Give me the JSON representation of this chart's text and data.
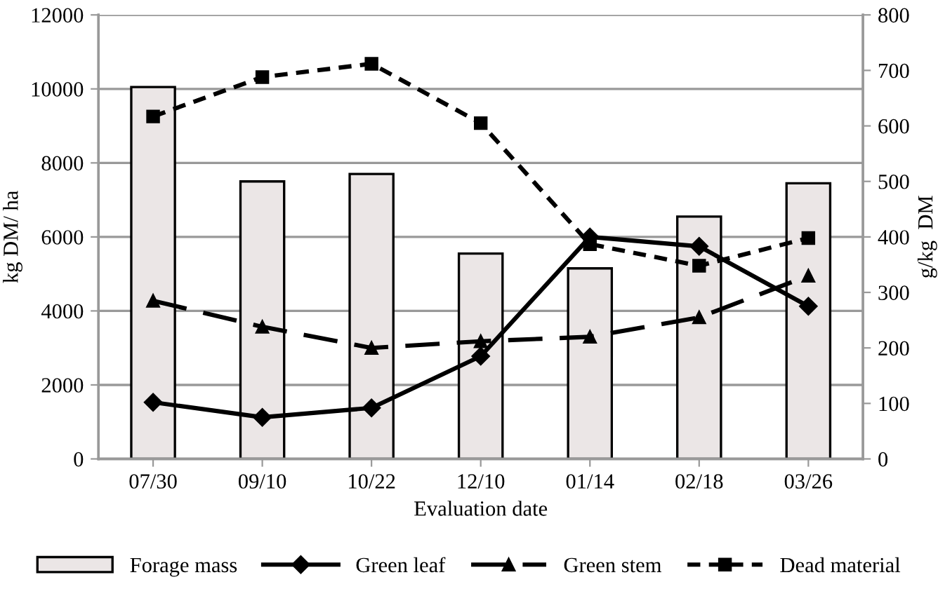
{
  "chart_data": {
    "type": "bar",
    "xlabel": "Evaluation date",
    "ylabel": "kg DM/ ha",
    "y2label": "g/kg  DM",
    "categories": [
      "07/30",
      "09/10",
      "10/22",
      "12/10",
      "01/14",
      "02/18",
      "03/26"
    ],
    "ylim": [
      0,
      12000
    ],
    "yticks": [
      0,
      2000,
      4000,
      6000,
      8000,
      10000,
      12000
    ],
    "y2lim": [
      0,
      800
    ],
    "y2ticks": [
      0,
      100,
      200,
      300,
      400,
      500,
      600,
      700,
      800
    ],
    "grid": "y",
    "legend": "bottom",
    "series": [
      {
        "name": "Forage mass",
        "color": "#ebe6e6",
        "values": [
          10050,
          7500,
          7700,
          5550,
          5150,
          6550,
          7450
        ]
      },
      {
        "name": "Green leaf",
        "type": "line",
        "axis": "y2",
        "color": "#000000",
        "marker": "diamond",
        "line_style": "solid",
        "values": [
          102,
          75,
          92,
          185,
          400,
          383,
          275
        ]
      },
      {
        "name": "Green stem",
        "type": "line",
        "axis": "y2",
        "color": "#000000",
        "marker": "triangle",
        "line_style": "dashed",
        "values": [
          285,
          238,
          200,
          212,
          220,
          255,
          330
        ]
      },
      {
        "name": "Dead material",
        "type": "line",
        "axis": "y2",
        "color": "#000000",
        "marker": "square",
        "line_style": "dotted",
        "values": [
          617,
          688,
          712,
          605,
          387,
          348,
          398
        ]
      }
    ]
  }
}
